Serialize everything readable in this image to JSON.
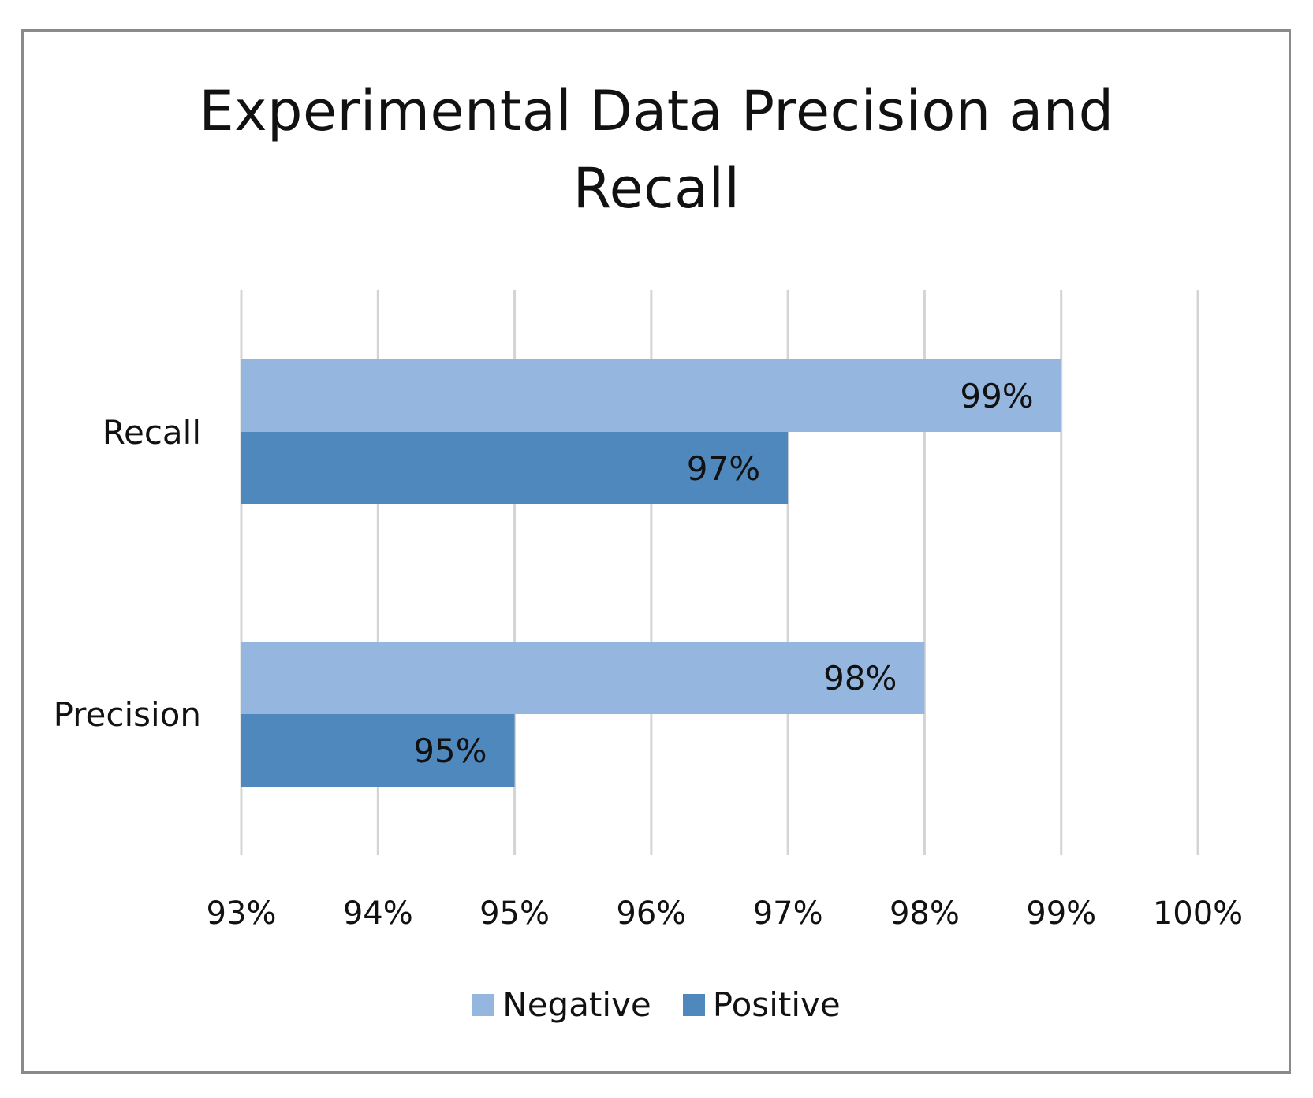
{
  "colors": {
    "negative": "#95b6de",
    "positive": "#4f88bd",
    "grid": "#d4d4d4"
  },
  "chart_data": {
    "type": "bar",
    "orientation": "horizontal",
    "title_lines": [
      "Experimental Data Precision and",
      "Recall"
    ],
    "categories": [
      "Recall",
      "Precision"
    ],
    "series": [
      {
        "name": "Negative",
        "values": [
          99,
          98
        ],
        "labels": [
          "99%",
          "98%"
        ]
      },
      {
        "name": "Positive",
        "values": [
          97,
          95
        ],
        "labels": [
          "97%",
          "95%"
        ]
      }
    ],
    "xlim": [
      93,
      100
    ],
    "xticks": [
      93,
      94,
      95,
      96,
      97,
      98,
      99,
      100
    ],
    "xtick_labels": [
      "93%",
      "94%",
      "95%",
      "96%",
      "97%",
      "98%",
      "99%",
      "100%"
    ],
    "grid": true,
    "legend_position": "bottom-center"
  }
}
